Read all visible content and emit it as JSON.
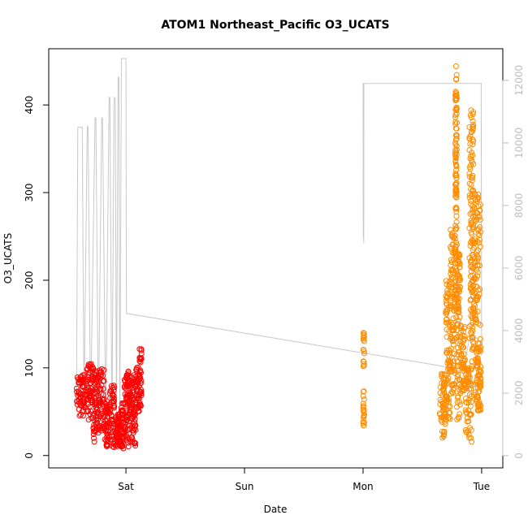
{
  "chart_data": {
    "type": "scatter",
    "title": "ATOM1 Northeast_Pacific O3_UCATS",
    "xlabel": "Date",
    "ylabel": "O3_UCATS",
    "x_axis": {
      "kind": "date",
      "range": [
        "2016-08-05T11:00",
        "2016-08-09T01:00"
      ],
      "ticks": [
        {
          "value": "2016-08-06T00:00",
          "label": "Sat"
        },
        {
          "value": "2016-08-07T00:00",
          "label": "Sun"
        },
        {
          "value": "2016-08-08T00:00",
          "label": "Mon"
        },
        {
          "value": "2016-08-09T00:00",
          "label": "Tue"
        }
      ]
    },
    "y_axis": {
      "range": [
        -3,
        453
      ],
      "ticks": [
        0,
        100,
        200,
        300,
        400
      ]
    },
    "y2_axis": {
      "label": "",
      "range": [
        -80,
        12700
      ],
      "ticks": [
        0,
        2000,
        4000,
        6000,
        8000,
        10000,
        12000
      ]
    },
    "grid": false,
    "legend": "none",
    "colors": {
      "day1": "#ff0000",
      "day2": "#ff8c00",
      "altitude": "#c8c8c8",
      "axis": "#000000",
      "axis2": "#bdbdbd"
    },
    "series": [
      {
        "color": "#ff0000",
        "marker": "open-circle",
        "ranges": [
          {
            "x": [
              "2016-08-05T14:00",
              "2016-08-05T16:00"
            ],
            "y": [
              45,
              92
            ]
          },
          {
            "x": [
              "2016-08-05T16:00",
              "2016-08-05T17:20"
            ],
            "y": [
              40,
              105
            ]
          },
          {
            "x": [
              "2016-08-05T17:20",
              "2016-08-05T18:10"
            ],
            "y": [
              15,
              100
            ]
          },
          {
            "x": [
              "2016-08-05T18:10",
              "2016-08-05T19:40"
            ],
            "y": [
              25,
              100
            ]
          },
          {
            "x": [
              "2016-08-05T19:40",
              "2016-08-05T20:30"
            ],
            "y": [
              10,
              60
            ]
          },
          {
            "x": [
              "2016-08-05T20:30",
              "2016-08-05T21:40"
            ],
            "y": [
              8,
              80
            ]
          },
          {
            "x": [
              "2016-08-05T21:40",
              "2016-08-05T22:20"
            ],
            "y": [
              10,
              45
            ]
          },
          {
            "x": [
              "2016-08-05T22:20",
              "2016-08-05T23:00"
            ],
            "y": [
              8,
              50
            ]
          },
          {
            "x": [
              "2016-08-05T23:00",
              "2016-08-05T23:40"
            ],
            "y": [
              8,
              65
            ]
          },
          {
            "x": [
              "2016-08-05T23:40",
              "2016-08-06T00:20"
            ],
            "y": [
              15,
              95
            ]
          },
          {
            "x": [
              "2016-08-06T00:20",
              "2016-08-06T01:10"
            ],
            "y": [
              10,
              98
            ]
          },
          {
            "x": [
              "2016-08-06T01:10",
              "2016-08-06T02:00"
            ],
            "y": [
              5,
              95
            ]
          },
          {
            "x": [
              "2016-08-06T02:00",
              "2016-08-06T02:45"
            ],
            "y": [
              50,
              102
            ]
          },
          {
            "x": [
              "2016-08-06T02:45",
              "2016-08-06T03:10"
            ],
            "y": [
              55,
              125
            ]
          }
        ]
      },
      {
        "color": "#ff8c00",
        "marker": "open-circle",
        "ranges": [
          {
            "x": [
              "2016-08-08T00:00",
              "2016-08-08T00:08"
            ],
            "y": [
              100,
              140
            ]
          },
          {
            "x": [
              "2016-08-08T00:00",
              "2016-08-08T00:08"
            ],
            "y": [
              28,
              75
            ]
          },
          {
            "x": [
              "2016-08-08T15:30",
              "2016-08-08T16:40"
            ],
            "y": [
              20,
              100
            ]
          },
          {
            "x": [
              "2016-08-08T16:40",
              "2016-08-08T17:40"
            ],
            "y": [
              40,
              200
            ]
          },
          {
            "x": [
              "2016-08-08T17:40",
              "2016-08-08T18:40"
            ],
            "y": [
              70,
              260
            ]
          },
          {
            "x": [
              "2016-08-08T18:40",
              "2016-08-08T19:00"
            ],
            "y": [
              150,
              445
            ]
          },
          {
            "x": [
              "2016-08-08T19:00",
              "2016-08-08T19:40"
            ],
            "y": [
              40,
              230
            ]
          },
          {
            "x": [
              "2016-08-08T19:40",
              "2016-08-08T20:40"
            ],
            "y": [
              70,
              150
            ]
          },
          {
            "x": [
              "2016-08-08T20:40",
              "2016-08-08T22:00"
            ],
            "y": [
              15,
              100
            ]
          },
          {
            "x": [
              "2016-08-08T21:30",
              "2016-08-08T22:20"
            ],
            "y": [
              100,
              400
            ]
          },
          {
            "x": [
              "2016-08-08T22:20",
              "2016-08-08T23:50"
            ],
            "y": [
              50,
              300
            ]
          },
          {
            "x": [
              "2016-08-08T22:50",
              "2016-08-08T23:50"
            ],
            "y": [
              50,
              125
            ]
          }
        ]
      }
    ],
    "altitude_line": {
      "color": "#c8c8c8",
      "axis": "y2",
      "points": [
        [
          "2016-08-05T14:00",
          1800
        ],
        [
          "2016-08-05T14:15",
          10500
        ],
        [
          "2016-08-05T15:10",
          10500
        ],
        [
          "2016-08-05T15:30",
          1500
        ],
        [
          "2016-08-05T16:10",
          10550
        ],
        [
          "2016-08-05T16:20",
          10500
        ],
        [
          "2016-08-05T16:50",
          1300
        ],
        [
          "2016-08-05T17:45",
          10800
        ],
        [
          "2016-08-05T17:55",
          10800
        ],
        [
          "2016-08-05T18:25",
          900
        ],
        [
          "2016-08-05T19:05",
          10800
        ],
        [
          "2016-08-05T19:15",
          10800
        ],
        [
          "2016-08-05T19:55",
          1000
        ],
        [
          "2016-08-05T20:35",
          11450
        ],
        [
          "2016-08-05T20:45",
          11450
        ],
        [
          "2016-08-05T21:10",
          800
        ],
        [
          "2016-08-05T21:35",
          11450
        ],
        [
          "2016-08-05T21:50",
          11450
        ],
        [
          "2016-08-05T22:05",
          1000
        ],
        [
          "2016-08-05T22:25",
          12100
        ],
        [
          "2016-08-05T22:35",
          12100
        ],
        [
          "2016-08-05T22:45",
          900
        ],
        [
          "2016-08-05T23:05",
          12700
        ],
        [
          "2016-08-05T23:20",
          12700
        ],
        [
          "2016-08-06T00:00",
          12700
        ],
        [
          "2016-08-06T00:05",
          4550
        ],
        [
          "2016-08-08T18:20",
          2800
        ],
        [
          "2016-08-08T20:30",
          2600
        ],
        [
          "2016-08-08T20:50",
          3200
        ],
        [
          "2016-08-08T21:30",
          3700
        ],
        [
          "2016-08-08T22:40",
          3800
        ],
        [
          "2016-08-08T23:55",
          3600
        ],
        [
          "2016-08-09T00:00",
          3200
        ],
        [
          "2016-08-08T23:55",
          11900
        ],
        [
          "2016-08-08T00:00",
          11900
        ],
        [
          "2016-08-08T00:02",
          7000
        ],
        [
          "2016-08-08T00:05",
          7500
        ],
        [
          "2016-08-08T00:08",
          6800
        ],
        [
          "2016-08-08T00:10",
          11900
        ]
      ]
    }
  }
}
